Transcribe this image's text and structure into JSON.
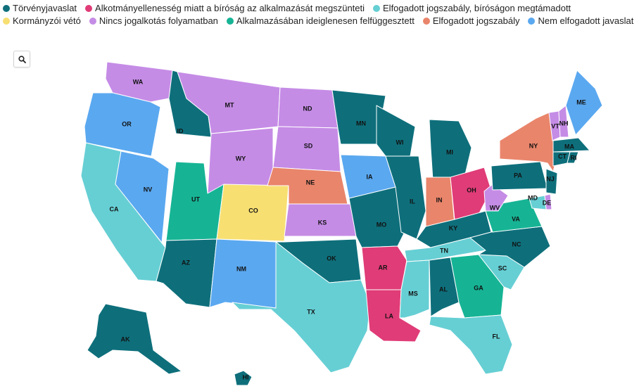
{
  "legend": [
    {
      "key": "torvenyjavaslat",
      "label": "Törvényjavaslat",
      "color": "#0e6f7b"
    },
    {
      "key": "alkotmanyellenes",
      "label": "Alkotmányellenesség miatt a bíróság az alkalmazását megszünteti",
      "color": "#e03c77"
    },
    {
      "key": "biro_megtamadott",
      "label": "Elfogadott jogszabály, bíróságon megtámadott",
      "color": "#66cfd4"
    },
    {
      "key": "veto",
      "label": "Kormányzói vétó",
      "color": "#f7df72"
    },
    {
      "key": "folyamatban",
      "label": "Nincs jogalkotás folyamatban",
      "color": "#c58ce6"
    },
    {
      "key": "felfuggesztett",
      "label": "Alkalmazásában ideiglenesen felfüggesztett",
      "color": "#16b495"
    },
    {
      "key": "elfogadott",
      "label": "Elfogadott jogszabály",
      "color": "#e9856b"
    },
    {
      "key": "nem_elfogadott",
      "label": "Nem elfogadott javaslat",
      "color": "#5aa8f0"
    }
  ],
  "zoom": {
    "icon": "search-icon",
    "symbol": "🔍"
  },
  "states": [
    {
      "abbr": "WA",
      "status": "folyamatban"
    },
    {
      "abbr": "OR",
      "status": "nem_elfogadott"
    },
    {
      "abbr": "CA",
      "status": "biro_megtamadott"
    },
    {
      "abbr": "NV",
      "status": "nem_elfogadott"
    },
    {
      "abbr": "ID",
      "status": "torvenyjavaslat"
    },
    {
      "abbr": "MT",
      "status": "folyamatban"
    },
    {
      "abbr": "WY",
      "status": "folyamatban"
    },
    {
      "abbr": "UT",
      "status": "felfuggesztett"
    },
    {
      "abbr": "AZ",
      "status": "torvenyjavaslat"
    },
    {
      "abbr": "CO",
      "status": "veto"
    },
    {
      "abbr": "NM",
      "status": "nem_elfogadott"
    },
    {
      "abbr": "ND",
      "status": "folyamatban"
    },
    {
      "abbr": "SD",
      "status": "folyamatban"
    },
    {
      "abbr": "NE",
      "status": "elfogadott"
    },
    {
      "abbr": "KS",
      "status": "folyamatban"
    },
    {
      "abbr": "OK",
      "status": "torvenyjavaslat"
    },
    {
      "abbr": "TX",
      "status": "biro_megtamadott"
    },
    {
      "abbr": "MN",
      "status": "torvenyjavaslat"
    },
    {
      "abbr": "IA",
      "status": "nem_elfogadott"
    },
    {
      "abbr": "MO",
      "status": "torvenyjavaslat"
    },
    {
      "abbr": "AR",
      "status": "alkotmanyellenes"
    },
    {
      "abbr": "LA",
      "status": "alkotmanyellenes"
    },
    {
      "abbr": "WI",
      "status": "torvenyjavaslat"
    },
    {
      "abbr": "IL",
      "status": "torvenyjavaslat"
    },
    {
      "abbr": "MI",
      "status": "torvenyjavaslat"
    },
    {
      "abbr": "IN",
      "status": "elfogadott"
    },
    {
      "abbr": "OH",
      "status": "alkotmanyellenes"
    },
    {
      "abbr": "KY",
      "status": "torvenyjavaslat"
    },
    {
      "abbr": "TN",
      "status": "biro_megtamadott"
    },
    {
      "abbr": "MS",
      "status": "biro_megtamadott"
    },
    {
      "abbr": "AL",
      "status": "torvenyjavaslat"
    },
    {
      "abbr": "GA",
      "status": "felfuggesztett"
    },
    {
      "abbr": "FL",
      "status": "biro_megtamadott"
    },
    {
      "abbr": "SC",
      "status": "biro_megtamadott"
    },
    {
      "abbr": "NC",
      "status": "torvenyjavaslat"
    },
    {
      "abbr": "VA",
      "status": "felfuggesztett"
    },
    {
      "abbr": "WV",
      "status": "folyamatban"
    },
    {
      "abbr": "PA",
      "status": "torvenyjavaslat"
    },
    {
      "abbr": "NY",
      "status": "elfogadott"
    },
    {
      "abbr": "VT",
      "status": "folyamatban"
    },
    {
      "abbr": "NH",
      "status": "folyamatban"
    },
    {
      "abbr": "ME",
      "status": "nem_elfogadott"
    },
    {
      "abbr": "MA",
      "status": "torvenyjavaslat"
    },
    {
      "abbr": "CT",
      "status": "torvenyjavaslat"
    },
    {
      "abbr": "RI",
      "status": "torvenyjavaslat"
    },
    {
      "abbr": "NJ",
      "status": "torvenyjavaslat"
    },
    {
      "abbr": "DE",
      "status": "folyamatban"
    },
    {
      "abbr": "MD",
      "status": "biro_megtamadott"
    },
    {
      "abbr": "AK",
      "status": "torvenyjavaslat"
    },
    {
      "abbr": "HI",
      "status": "torvenyjavaslat"
    }
  ]
}
